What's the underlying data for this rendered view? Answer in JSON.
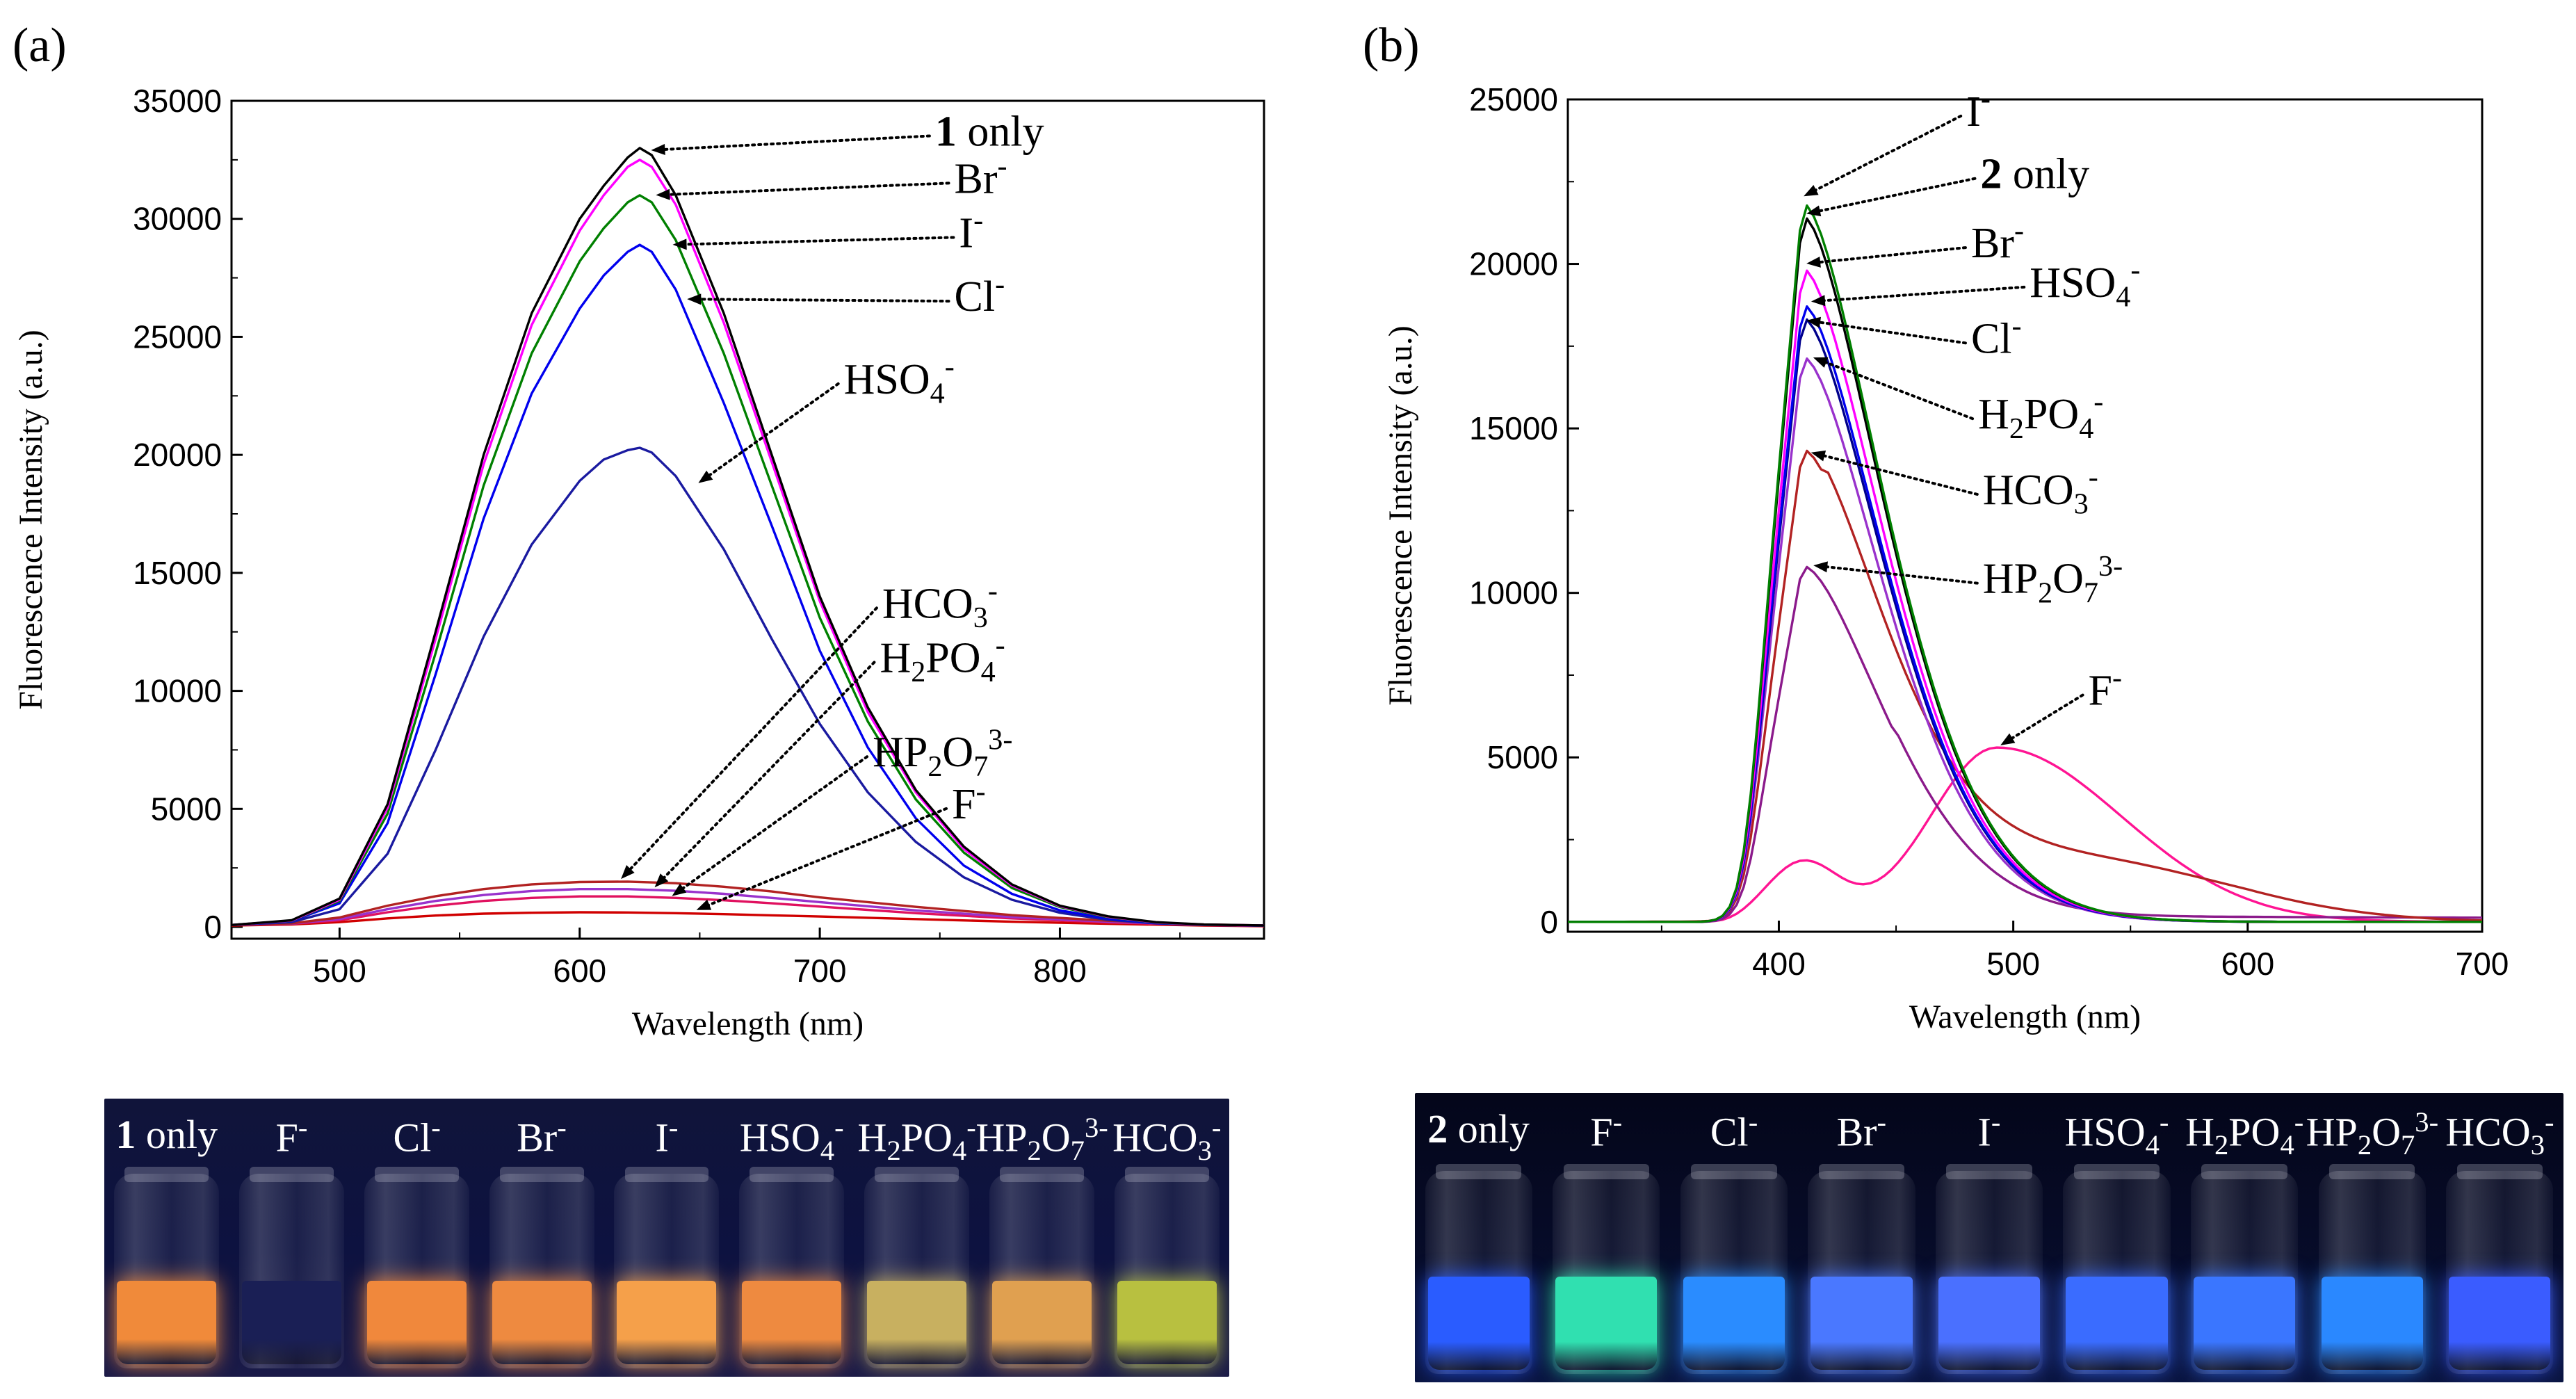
{
  "panels": {
    "a": {
      "label": "(a)"
    },
    "b": {
      "label": "(b)"
    }
  },
  "chart_data": [
    {
      "id": "a",
      "type": "line",
      "title": "",
      "xlabel": "Wavelength (nm)",
      "ylabel": "Fluorescence Intensity (a.u.)",
      "xlim": [
        455,
        885
      ],
      "ylim": [
        -500,
        35000
      ],
      "xticks": [
        500,
        600,
        700,
        800
      ],
      "yticks": [
        0,
        5000,
        10000,
        15000,
        20000,
        25000,
        30000,
        35000
      ],
      "grid": false,
      "series": [
        {
          "name": "1 only",
          "color": "#000000",
          "x": [
            455,
            480,
            500,
            520,
            540,
            560,
            580,
            600,
            610,
            620,
            625,
            630,
            640,
            660,
            680,
            700,
            720,
            740,
            760,
            780,
            800,
            820,
            840,
            860,
            885
          ],
          "y": [
            80,
            280,
            1200,
            5200,
            12500,
            20000,
            26000,
            30000,
            31400,
            32600,
            33000,
            32700,
            31000,
            26000,
            20000,
            14000,
            9300,
            5800,
            3400,
            1800,
            900,
            450,
            200,
            100,
            60
          ]
        },
        {
          "name": "Br-",
          "color": "#ff00ff",
          "x": [
            455,
            480,
            500,
            520,
            540,
            560,
            580,
            600,
            610,
            620,
            625,
            630,
            640,
            660,
            680,
            700,
            720,
            740,
            760,
            780,
            800,
            820,
            840,
            860,
            885
          ],
          "y": [
            80,
            270,
            1150,
            5050,
            12200,
            19600,
            25500,
            29500,
            31000,
            32200,
            32500,
            32200,
            30600,
            25600,
            19700,
            13800,
            9100,
            5700,
            3300,
            1750,
            880,
            430,
            190,
            95,
            60
          ]
        },
        {
          "name": "I-",
          "color": "#008000",
          "x": [
            455,
            480,
            500,
            520,
            540,
            560,
            580,
            600,
            610,
            620,
            625,
            630,
            640,
            660,
            680,
            700,
            720,
            740,
            760,
            780,
            800,
            820,
            840,
            860,
            885
          ],
          "y": [
            80,
            260,
            1100,
            4800,
            11600,
            18700,
            24300,
            28200,
            29600,
            30700,
            31000,
            30700,
            29100,
            24300,
            18700,
            13100,
            8700,
            5400,
            3150,
            1650,
            840,
            410,
            180,
            90,
            60
          ]
        },
        {
          "name": "Cl-",
          "color": "#0000ee",
          "x": [
            455,
            480,
            500,
            520,
            540,
            560,
            580,
            600,
            610,
            620,
            625,
            630,
            640,
            660,
            680,
            700,
            720,
            740,
            760,
            780,
            800,
            820,
            840,
            860,
            885
          ],
          "y": [
            80,
            250,
            1000,
            4400,
            10700,
            17300,
            22600,
            26200,
            27600,
            28600,
            28900,
            28600,
            27000,
            22200,
            17000,
            11700,
            7600,
            4600,
            2600,
            1400,
            700,
            350,
            160,
            90,
            60
          ]
        },
        {
          "name": "HSO4-",
          "color": "#1a1aa0",
          "x": [
            455,
            480,
            500,
            520,
            540,
            560,
            580,
            600,
            610,
            620,
            625,
            630,
            640,
            660,
            680,
            700,
            720,
            740,
            760,
            780,
            800,
            820,
            840,
            860,
            885
          ],
          "y": [
            80,
            200,
            750,
            3100,
            7500,
            12300,
            16200,
            18900,
            19800,
            20200,
            20300,
            20100,
            19100,
            16000,
            12200,
            8600,
            5700,
            3600,
            2100,
            1150,
            600,
            300,
            150,
            80,
            50
          ]
        },
        {
          "name": "HCO3-",
          "color": "#b22222",
          "x": [
            455,
            480,
            500,
            520,
            540,
            560,
            580,
            600,
            620,
            640,
            660,
            680,
            700,
            740,
            780,
            820,
            860,
            885
          ],
          "y": [
            80,
            150,
            400,
            900,
            1300,
            1600,
            1800,
            1900,
            1920,
            1850,
            1700,
            1500,
            1250,
            850,
            500,
            260,
            100,
            60
          ]
        },
        {
          "name": "H2PO4-",
          "color": "#9932cc",
          "x": [
            455,
            480,
            500,
            520,
            540,
            560,
            580,
            600,
            620,
            640,
            660,
            680,
            700,
            740,
            780,
            820,
            860,
            885
          ],
          "y": [
            80,
            140,
            330,
            750,
            1100,
            1350,
            1520,
            1600,
            1600,
            1530,
            1400,
            1230,
            1050,
            700,
            420,
            220,
            90,
            50
          ]
        },
        {
          "name": "HP2O7 3-",
          "color": "#e0115f",
          "x": [
            455,
            480,
            500,
            520,
            540,
            560,
            580,
            600,
            620,
            640,
            660,
            680,
            700,
            740,
            780,
            820,
            860,
            885
          ],
          "y": [
            80,
            130,
            280,
            620,
            900,
            1100,
            1230,
            1290,
            1290,
            1230,
            1130,
            1000,
            860,
            580,
            360,
            190,
            80,
            40
          ]
        },
        {
          "name": "F-",
          "color": "#d00000",
          "x": [
            455,
            480,
            500,
            520,
            540,
            560,
            580,
            600,
            620,
            640,
            660,
            680,
            700,
            740,
            780,
            820,
            860,
            885
          ],
          "y": [
            60,
            100,
            200,
            360,
            480,
            560,
            600,
            620,
            610,
            580,
            540,
            490,
            440,
            330,
            220,
            130,
            60,
            30
          ]
        }
      ],
      "annotations": [
        {
          "text": "1 only",
          "x": 748,
          "y": 33100,
          "tx": 628,
          "ty": 32900,
          "bold": "1",
          "rest": " only"
        },
        {
          "text": "Br-",
          "x": 756,
          "y": 31100,
          "tx": 630,
          "ty": 31000,
          "base": "Br",
          "sup": "-"
        },
        {
          "text": "I-",
          "x": 758,
          "y": 28800,
          "tx": 637,
          "ty": 28900,
          "base": "I",
          "sup": "-"
        },
        {
          "text": "Cl-",
          "x": 756,
          "y": 26100,
          "tx": 643,
          "ty": 26600,
          "base": "Cl",
          "sup": "-"
        },
        {
          "text": "HSO4-",
          "x": 710,
          "y": 22600,
          "tx": 648,
          "ty": 18700,
          "base": "HSO",
          "sub": "4",
          "sup": "-"
        },
        {
          "text": "HCO3-",
          "x": 726,
          "y": 13100,
          "tx": 616,
          "ty": 1900,
          "base": "HCO",
          "sub": "3",
          "sup": "-"
        },
        {
          "text": "H2PO4-",
          "x": 725,
          "y": 10800,
          "tx": 630,
          "ty": 1550,
          "base": "H",
          "sub": "2",
          "base2": "PO",
          "sub2": "4",
          "sup": "-"
        },
        {
          "text": "HP2O7 3-",
          "x": 722,
          "y": 6800,
          "tx": 637,
          "ty": 1200,
          "base": "HP",
          "sub": "2",
          "base2": "O",
          "sub2": "7",
          "sup": "3-"
        },
        {
          "text": "F-",
          "x": 755,
          "y": 4600,
          "tx": 647,
          "ty": 650,
          "base": "F",
          "sup": "-"
        }
      ]
    },
    {
      "id": "b",
      "type": "line",
      "title": "",
      "xlabel": "Wavelength (nm)",
      "ylabel": "Fluorescence Intensity (a.u.)",
      "xlim": [
        310,
        700
      ],
      "ylim": [
        -300,
        25000
      ],
      "xticks": [
        400,
        500,
        600,
        700
      ],
      "yticks": [
        0,
        5000,
        10000,
        15000,
        20000,
        25000
      ],
      "grid": false,
      "series": [
        {
          "name": "I-",
          "color": "#008000",
          "peak": 22000
        },
        {
          "name": "2 only",
          "color": "#000000",
          "peak": 21600
        },
        {
          "name": "Br-",
          "color": "#ff00ff",
          "peak": 20000
        },
        {
          "name": "HSO4-",
          "color": "#0000ee",
          "peak": 18900
        },
        {
          "name": "Cl-",
          "color": "#00008b",
          "peak": 18500
        },
        {
          "name": "H2PO4-",
          "color": "#9932cc",
          "peak": 17300
        },
        {
          "name": "HCO3-",
          "color": "#b22222",
          "peak": 14400
        },
        {
          "name": "HP2O7 3-",
          "color": "#8b1a8b",
          "peak": 10900
        },
        {
          "name": "F-",
          "color": "#ff1493",
          "peak": 5300
        }
      ],
      "annotations": [
        {
          "text": "I-",
          "x": 480,
          "y": 24200,
          "tx": 409,
          "ty": 22000,
          "base": "I",
          "sup": "-"
        },
        {
          "text": "2 only",
          "x": 486,
          "y": 22300,
          "tx": 410,
          "ty": 21500,
          "bold": "2",
          "rest": " only"
        },
        {
          "text": "Br-",
          "x": 482,
          "y": 20200,
          "tx": 410,
          "ty": 20000,
          "base": "Br",
          "sup": "-"
        },
        {
          "text": "HSO4-",
          "x": 507,
          "y": 19000,
          "tx": 412,
          "ty": 18850,
          "base": "HSO",
          "sub": "4",
          "sup": "-"
        },
        {
          "text": "Cl-",
          "x": 482,
          "y": 17300,
          "tx": 410,
          "ty": 18300,
          "base": "Cl",
          "sup": "-"
        },
        {
          "text": "H2PO4-",
          "x": 485,
          "y": 15000,
          "tx": 413,
          "ty": 17200,
          "base": "H",
          "sub": "2",
          "base2": "PO",
          "sub2": "4",
          "sup": "-"
        },
        {
          "text": "HCO3-",
          "x": 487,
          "y": 12700,
          "tx": 412,
          "ty": 14300,
          "base": "HCO",
          "sub": "3",
          "sup": "-"
        },
        {
          "text": "HP2O7 3-",
          "x": 487,
          "y": 10000,
          "tx": 413,
          "ty": 10850,
          "base": "HP",
          "sub": "2",
          "base2": "O",
          "sub2": "7",
          "sup": "3-"
        },
        {
          "text": "F-",
          "x": 532,
          "y": 6600,
          "tx": 493,
          "ty": 5300,
          "base": "F",
          "sup": "-"
        }
      ]
    }
  ],
  "photos": {
    "a": {
      "vial_labels": [
        "1 only",
        "F-",
        "Cl-",
        "Br-",
        "I-",
        "HSO4-",
        "H2PO4-",
        "HP2O7 3-",
        "HCO3-"
      ],
      "liquid_colors": [
        "#f08a3a",
        "#1a1f55",
        "#f0883c",
        "#ee8a40",
        "#f5a04a",
        "#ee8a40",
        "#c8b060",
        "#e0a050",
        "#b8c040"
      ]
    },
    "b": {
      "vial_labels": [
        "2 only",
        "F-",
        "Cl-",
        "Br-",
        "I-",
        "HSO4-",
        "H2PO4-",
        "HP2O7 3-",
        "HCO3-"
      ],
      "liquid_colors": [
        "#2a5cff",
        "#30e0b0",
        "#2a8cff",
        "#4a78ff",
        "#4a70ff",
        "#3a6cff",
        "#3a76ff",
        "#2a88ff",
        "#3a5cff"
      ]
    }
  }
}
